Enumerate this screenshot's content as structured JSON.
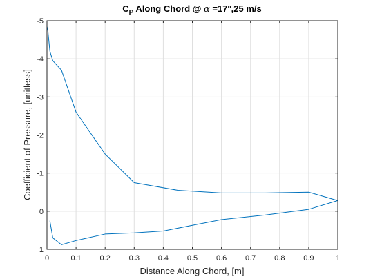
{
  "chart_data": {
    "type": "line",
    "title": {
      "main": "C",
      "sub": "P",
      "rest": " Along Chord @ ",
      "greek": "α",
      "tail": " =17°,25 m/s"
    },
    "xlabel": "Distance Along Chord, [m]",
    "ylabel": "Coefficient of Pressure, [unitless]",
    "xlim": [
      0,
      1
    ],
    "ylim": [
      -5,
      1
    ],
    "y_reversed": true,
    "x_ticks": [
      "0",
      "0.1",
      "0.2",
      "0.3",
      "0.4",
      "0.5",
      "0.6",
      "0.7",
      "0.8",
      "0.9",
      "1"
    ],
    "x_tick_values": [
      0,
      0.1,
      0.2,
      0.3,
      0.4,
      0.5,
      0.6,
      0.7,
      0.8,
      0.9,
      1
    ],
    "y_ticks": [
      "-5",
      "-4",
      "-3",
      "-2",
      "-1",
      "0",
      "1"
    ],
    "y_tick_values": [
      -5,
      -4,
      -3,
      -2,
      -1,
      0,
      1
    ],
    "grid": true,
    "line_color": "#0072bd",
    "series": [
      {
        "x": [
          0,
          0.003,
          0.01,
          0.02,
          0.05,
          0.1,
          0.2,
          0.3,
          0.45,
          0.6,
          0.75,
          0.9,
          1.0
        ],
        "y": [
          -4.85,
          -4.75,
          -4.2,
          -3.95,
          -3.7,
          -2.6,
          -1.5,
          -0.75,
          -0.55,
          -0.48,
          -0.48,
          -0.5,
          -0.28
        ]
      },
      {
        "x": [
          0.01,
          0.02,
          0.05,
          0.1,
          0.2,
          0.3,
          0.4,
          0.5,
          0.6,
          0.75,
          0.9,
          1.0
        ],
        "y": [
          0.25,
          0.7,
          0.88,
          0.77,
          0.6,
          0.57,
          0.52,
          0.37,
          0.22,
          0.1,
          -0.05,
          -0.28
        ]
      }
    ]
  }
}
